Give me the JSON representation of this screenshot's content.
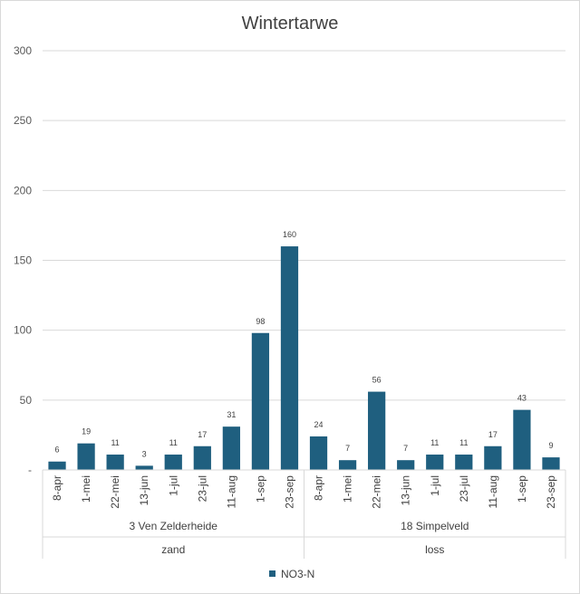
{
  "chart_data": {
    "type": "bar",
    "title": "Wintertarwe",
    "xlabel": "",
    "ylabel": "",
    "ylim": [
      0,
      300
    ],
    "yticks": [
      "-",
      "50",
      "100",
      "150",
      "200",
      "250",
      "300"
    ],
    "grid": true,
    "legend_position": "bottom",
    "color": "#1f5f7f",
    "series": [
      {
        "name": "NO3-N",
        "values": [
          6,
          19,
          11,
          3,
          11,
          17,
          31,
          98,
          160,
          24,
          7,
          56,
          7,
          11,
          11,
          17,
          43,
          9
        ]
      }
    ],
    "categories": [
      "8-apr",
      "1-mei",
      "22-mei",
      "13-jun",
      "1-jul",
      "23-jul",
      "11-aug",
      "1-sep",
      "23-sep",
      "8-apr",
      "1-mei",
      "22-mei",
      "13-jun",
      "1-jul",
      "23-jul",
      "11-aug",
      "1-sep",
      "23-sep"
    ],
    "groups": [
      {
        "location": "3 Ven Zelderheide",
        "soil": "zand",
        "start": 0,
        "count": 9
      },
      {
        "location": "18 Simpelveld",
        "soil": "loss",
        "start": 9,
        "count": 9
      }
    ]
  }
}
